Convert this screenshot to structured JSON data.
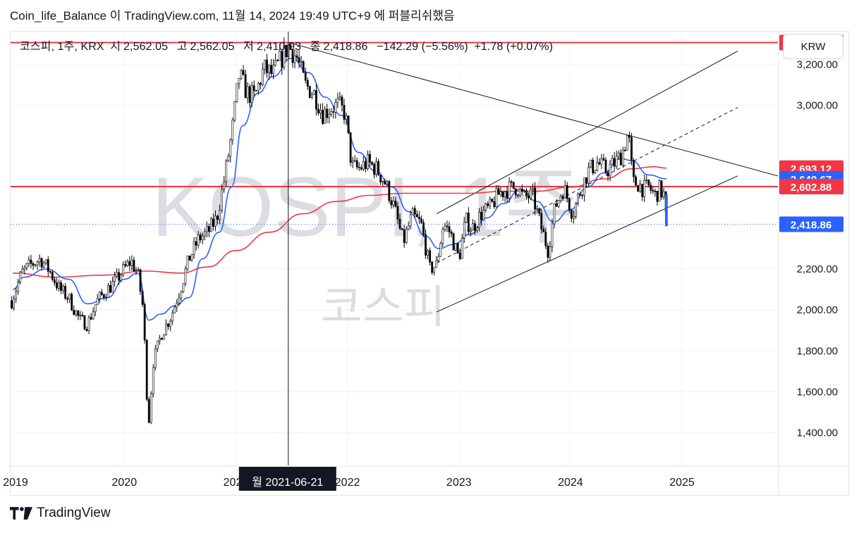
{
  "header": {
    "author": "Coin_life_Balance",
    "particle": "이",
    "site": "TradingView.com,",
    "timestamp": "11월 14, 2024 19:49 UTC+9",
    "suffix": "에 퍼블리쉬했음"
  },
  "legend": {
    "symbol": "코스피, 1주, KRX",
    "open_label": "시",
    "open": "2,562.05",
    "high_label": "고",
    "high": "2,562.05",
    "low_label": "저",
    "low": "2,410.93",
    "close_label": "종",
    "close": "2,418.86",
    "change": "−142.29 (−5.56%)",
    "change2": "+1.78 (+0.07%)"
  },
  "currency": "KRW",
  "watermark": {
    "title": "KOSPI, 1주",
    "subtitle": "코스피"
  },
  "crosshair_label": "월 2021-06-21",
  "footer": {
    "brand": "TradingView"
  },
  "colors": {
    "up": "#089981",
    "down": "#f23645",
    "candle": "#000000",
    "ma_blue": "#2962ff",
    "ma_red": "#f23645",
    "hline": "#f23645"
  },
  "chart_data": {
    "type": "candlestick",
    "x_range": [
      2018.98,
      2025.86
    ],
    "y_range": [
      1240,
      3360
    ],
    "x_ticks": [
      {
        "label": "2019",
        "x": 2019.0
      },
      {
        "label": "2020",
        "x": 2020.0
      },
      {
        "label": "2021",
        "x": 2021.0
      },
      {
        "label": "2022",
        "x": 2022.0
      },
      {
        "label": "2023",
        "x": 2023.0
      },
      {
        "label": "2024",
        "x": 2024.0
      },
      {
        "label": "2025",
        "x": 2025.0
      }
    ],
    "y_ticks": [
      {
        "label": "3,200.00",
        "y": 3200
      },
      {
        "label": "3,000.00",
        "y": 3000
      },
      {
        "label": "2,200.00",
        "y": 2200
      },
      {
        "label": "2,000.00",
        "y": 2000
      },
      {
        "label": "1,800.00",
        "y": 1800
      },
      {
        "label": "1,600.00",
        "y": 1600
      },
      {
        "label": "1,400.00",
        "y": 1400
      }
    ],
    "price_labels": [
      {
        "label": "3,306.86",
        "y": 3306.86,
        "color": "#f23645"
      },
      {
        "label": "2,693.12",
        "y": 2693.12,
        "color": "#f23645"
      },
      {
        "label": "2,640.67",
        "y": 2640.67,
        "color": "#2962ff"
      },
      {
        "label": "2,602.88",
        "y": 2602.88,
        "color": "#f23645"
      },
      {
        "label": "2,418.86",
        "y": 2418.86,
        "color": "#2962ff"
      }
    ],
    "horizontal_lines": [
      3306.86,
      2602.88
    ],
    "last_price": 2418.86,
    "crosshair_x": 2021.47,
    "trendlines": [
      {
        "x1": 2021.47,
        "y1": 3306.86,
        "x2": 2025.86,
        "y2": 2655,
        "style": "solid"
      },
      {
        "x1": 2022.8,
        "y1": 2470,
        "x2": 2025.5,
        "y2": 3265,
        "style": "solid"
      },
      {
        "x1": 2022.8,
        "y1": 1990,
        "x2": 2025.5,
        "y2": 2655,
        "style": "solid"
      },
      {
        "x1": 2022.8,
        "y1": 2230,
        "x2": 2025.5,
        "y2": 2990,
        "style": "dashed"
      }
    ],
    "series": [
      {
        "name": "close",
        "values": [
          [
            2019.0,
            2060
          ],
          [
            2019.08,
            2180
          ],
          [
            2019.16,
            2220
          ],
          [
            2019.25,
            2250
          ],
          [
            2019.33,
            2190
          ],
          [
            2019.42,
            2100
          ],
          [
            2019.5,
            2060
          ],
          [
            2019.6,
            1950
          ],
          [
            2019.67,
            1930
          ],
          [
            2019.75,
            2040
          ],
          [
            2019.83,
            2090
          ],
          [
            2019.92,
            2140
          ],
          [
            2020.0,
            2200
          ],
          [
            2020.06,
            2240
          ],
          [
            2020.12,
            2180
          ],
          [
            2020.17,
            2000
          ],
          [
            2020.2,
            1600
          ],
          [
            2020.22,
            1460
          ],
          [
            2020.26,
            1750
          ],
          [
            2020.33,
            1880
          ],
          [
            2020.42,
            1970
          ],
          [
            2020.5,
            2100
          ],
          [
            2020.58,
            2250
          ],
          [
            2020.67,
            2350
          ],
          [
            2020.75,
            2380
          ],
          [
            2020.83,
            2450
          ],
          [
            2020.9,
            2650
          ],
          [
            2020.96,
            2850
          ],
          [
            2021.03,
            3150
          ],
          [
            2021.1,
            3060
          ],
          [
            2021.17,
            3040
          ],
          [
            2021.25,
            3180
          ],
          [
            2021.33,
            3150
          ],
          [
            2021.42,
            3240
          ],
          [
            2021.47,
            3290
          ],
          [
            2021.55,
            3230
          ],
          [
            2021.62,
            3100
          ],
          [
            2021.7,
            3060
          ],
          [
            2021.78,
            2960
          ],
          [
            2021.86,
            2990
          ],
          [
            2021.92,
            3000
          ],
          [
            2021.98,
            2960
          ],
          [
            2022.04,
            2700
          ],
          [
            2022.1,
            2690
          ],
          [
            2022.18,
            2720
          ],
          [
            2022.26,
            2690
          ],
          [
            2022.34,
            2620
          ],
          [
            2022.42,
            2500
          ],
          [
            2022.5,
            2330
          ],
          [
            2022.58,
            2460
          ],
          [
            2022.66,
            2420
          ],
          [
            2022.74,
            2200
          ],
          [
            2022.8,
            2220
          ],
          [
            2022.86,
            2420
          ],
          [
            2022.92,
            2380
          ],
          [
            2023.0,
            2250
          ],
          [
            2023.06,
            2440
          ],
          [
            2023.12,
            2400
          ],
          [
            2023.2,
            2470
          ],
          [
            2023.28,
            2500
          ],
          [
            2023.36,
            2570
          ],
          [
            2023.44,
            2590
          ],
          [
            2023.52,
            2600
          ],
          [
            2023.58,
            2550
          ],
          [
            2023.66,
            2560
          ],
          [
            2023.74,
            2400
          ],
          [
            2023.8,
            2290
          ],
          [
            2023.86,
            2500
          ],
          [
            2023.94,
            2600
          ],
          [
            2024.02,
            2470
          ],
          [
            2024.08,
            2570
          ],
          [
            2024.16,
            2680
          ],
          [
            2024.24,
            2720
          ],
          [
            2024.32,
            2680
          ],
          [
            2024.4,
            2720
          ],
          [
            2024.46,
            2760
          ],
          [
            2024.52,
            2870
          ],
          [
            2024.56,
            2620
          ],
          [
            2024.6,
            2620
          ],
          [
            2024.66,
            2590
          ],
          [
            2024.7,
            2600
          ],
          [
            2024.76,
            2560
          ],
          [
            2024.8,
            2590
          ],
          [
            2024.84,
            2560
          ],
          [
            2024.86,
            2418.86
          ]
        ]
      },
      {
        "name": "ma_blue",
        "values": [
          [
            2019.0,
            2100
          ],
          [
            2019.1,
            2160
          ],
          [
            2019.3,
            2200
          ],
          [
            2019.5,
            2150
          ],
          [
            2019.67,
            2030
          ],
          [
            2019.85,
            2060
          ],
          [
            2020.0,
            2150
          ],
          [
            2020.12,
            2180
          ],
          [
            2020.22,
            1950
          ],
          [
            2020.33,
            1980
          ],
          [
            2020.45,
            2020
          ],
          [
            2020.58,
            2060
          ],
          [
            2020.7,
            2250
          ],
          [
            2020.85,
            2380
          ],
          [
            2020.96,
            2600
          ],
          [
            2021.06,
            2900
          ],
          [
            2021.2,
            3060
          ],
          [
            2021.33,
            3140
          ],
          [
            2021.5,
            3230
          ],
          [
            2021.65,
            3160
          ],
          [
            2021.8,
            3040
          ],
          [
            2021.95,
            2950
          ],
          [
            2022.1,
            2770
          ],
          [
            2022.25,
            2680
          ],
          [
            2022.4,
            2600
          ],
          [
            2022.55,
            2480
          ],
          [
            2022.7,
            2360
          ],
          [
            2022.82,
            2300
          ],
          [
            2022.95,
            2320
          ],
          [
            2023.1,
            2370
          ],
          [
            2023.25,
            2450
          ],
          [
            2023.4,
            2520
          ],
          [
            2023.55,
            2590
          ],
          [
            2023.7,
            2530
          ],
          [
            2023.85,
            2430
          ],
          [
            2024.0,
            2490
          ],
          [
            2024.15,
            2600
          ],
          [
            2024.3,
            2670
          ],
          [
            2024.45,
            2740
          ],
          [
            2024.55,
            2730
          ],
          [
            2024.7,
            2660
          ],
          [
            2024.86,
            2640.67
          ]
        ]
      },
      {
        "name": "ma_red",
        "values": [
          [
            2019.0,
            2180
          ],
          [
            2019.4,
            2160
          ],
          [
            2019.8,
            2170
          ],
          [
            2020.2,
            2190
          ],
          [
            2020.5,
            2180
          ],
          [
            2020.75,
            2210
          ],
          [
            2021.0,
            2290
          ],
          [
            2021.3,
            2380
          ],
          [
            2021.6,
            2470
          ],
          [
            2021.9,
            2530
          ],
          [
            2022.2,
            2560
          ],
          [
            2022.5,
            2570
          ],
          [
            2022.8,
            2570
          ],
          [
            2023.1,
            2570
          ],
          [
            2023.4,
            2580
          ],
          [
            2023.7,
            2580
          ],
          [
            2024.0,
            2600
          ],
          [
            2024.3,
            2640
          ],
          [
            2024.55,
            2690
          ],
          [
            2024.75,
            2700
          ],
          [
            2024.86,
            2693.12
          ]
        ]
      }
    ]
  }
}
